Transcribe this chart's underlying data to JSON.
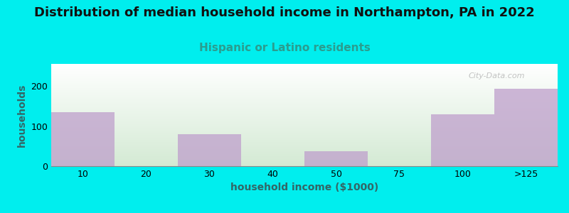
{
  "title": "Distribution of median household income in Northampton, PA in 2022",
  "subtitle": "Hispanic or Latino residents",
  "xlabel": "household income ($1000)",
  "ylabel": "households",
  "categories": [
    "10",
    "20",
    "30",
    "40",
    "50",
    "75",
    "100",
    ">125"
  ],
  "values": [
    135,
    0,
    80,
    0,
    38,
    0,
    130,
    193
  ],
  "bar_color": "#bf9fcc",
  "bar_alpha": 0.75,
  "background_color": "#00EEEE",
  "plot_bg_top": "#f0f8e8",
  "plot_bg_bottom": "#e8f5e0",
  "gradient_top": "#ffffff",
  "gradient_bottom": "#d4ead4",
  "ylim": [
    0,
    255
  ],
  "yticks": [
    0,
    100,
    200
  ],
  "title_fontsize": 13,
  "subtitle_fontsize": 11,
  "axis_label_fontsize": 10,
  "tick_fontsize": 9,
  "watermark": "City-Data.com",
  "subtitle_color": "#2a9d8f"
}
